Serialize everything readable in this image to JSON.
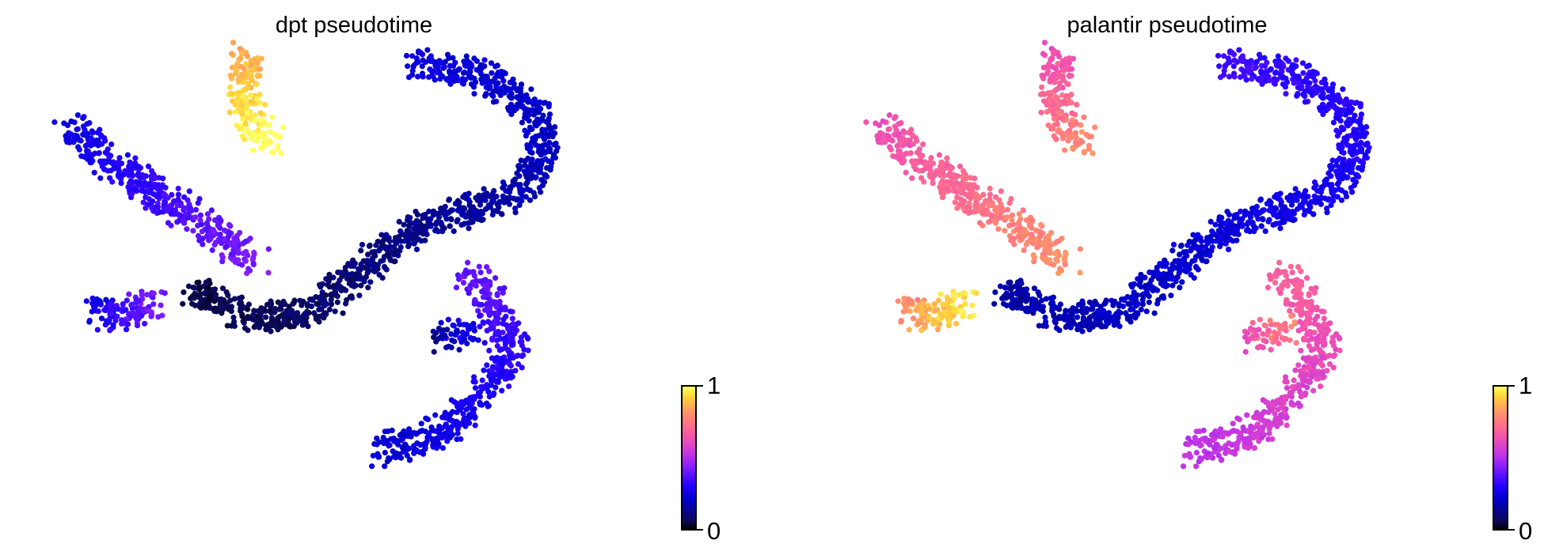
{
  "panels": [
    {
      "title": "dpt pseudotime",
      "colorbar": {
        "min_label": "0",
        "max_label": "1"
      }
    },
    {
      "title": "palantir pseudotime",
      "colorbar": {
        "min_label": "0",
        "max_label": "1"
      }
    }
  ],
  "chart_data": [
    {
      "type": "scatter",
      "title": "dpt pseudotime",
      "xlabel": "",
      "ylabel": "",
      "axes_visible": false,
      "grid": false,
      "colormap": "gnuplot2",
      "color_range": [
        0,
        1
      ],
      "colorbar_ticks": [
        "0",
        "1"
      ],
      "branches": [
        {
          "path": [
            [
              0.06,
              0.22
            ],
            [
              0.12,
              0.3
            ],
            [
              0.2,
              0.37
            ],
            [
              0.28,
              0.44
            ],
            [
              0.36,
              0.52
            ]
          ],
          "pseudotime": 0.33
        },
        {
          "path": [
            [
              0.1,
              0.62
            ],
            [
              0.14,
              0.64
            ],
            [
              0.2,
              0.6
            ]
          ],
          "pseudotime": 0.33
        },
        {
          "path": [
            [
              0.26,
              0.58
            ],
            [
              0.36,
              0.64
            ],
            [
              0.46,
              0.62
            ],
            [
              0.54,
              0.53
            ],
            [
              0.62,
              0.45
            ],
            [
              0.7,
              0.41
            ],
            [
              0.78,
              0.38
            ],
            [
              0.83,
              0.3
            ],
            [
              0.82,
              0.2
            ],
            [
              0.72,
              0.12
            ],
            [
              0.62,
              0.1
            ]
          ],
          "pseudotime": 0.15
        },
        {
          "path": [
            [
              0.35,
              0.08
            ],
            [
              0.34,
              0.16
            ],
            [
              0.36,
              0.23
            ],
            [
              0.39,
              0.27
            ]
          ],
          "pseudotime": 0.95
        },
        {
          "path": [
            [
              0.56,
              0.92
            ],
            [
              0.66,
              0.88
            ],
            [
              0.73,
              0.8
            ],
            [
              0.78,
              0.7
            ],
            [
              0.75,
              0.62
            ],
            [
              0.71,
              0.54
            ]
          ],
          "pseudotime": 0.3
        },
        {
          "path": [
            [
              0.66,
              0.68
            ],
            [
              0.71,
              0.66
            ]
          ],
          "pseudotime": 0.22
        }
      ]
    },
    {
      "type": "scatter",
      "title": "palantir pseudotime",
      "xlabel": "",
      "ylabel": "",
      "axes_visible": false,
      "grid": false,
      "colormap": "gnuplot2",
      "color_range": [
        0,
        1
      ],
      "colorbar_ticks": [
        "0",
        "1"
      ],
      "branches": [
        {
          "path": [
            [
              0.06,
              0.22
            ],
            [
              0.12,
              0.3
            ],
            [
              0.2,
              0.37
            ],
            [
              0.28,
              0.44
            ],
            [
              0.36,
              0.52
            ]
          ],
          "pseudotime": 0.72
        },
        {
          "path": [
            [
              0.1,
              0.62
            ],
            [
              0.14,
              0.64
            ],
            [
              0.2,
              0.6
            ]
          ],
          "pseudotime": 0.88
        },
        {
          "path": [
            [
              0.26,
              0.58
            ],
            [
              0.36,
              0.64
            ],
            [
              0.46,
              0.62
            ],
            [
              0.54,
              0.53
            ],
            [
              0.62,
              0.45
            ],
            [
              0.7,
              0.41
            ],
            [
              0.78,
              0.38
            ],
            [
              0.83,
              0.3
            ],
            [
              0.82,
              0.2
            ],
            [
              0.72,
              0.12
            ],
            [
              0.62,
              0.1
            ]
          ],
          "pseudotime": 0.25
        },
        {
          "path": [
            [
              0.35,
              0.08
            ],
            [
              0.34,
              0.16
            ],
            [
              0.36,
              0.23
            ],
            [
              0.39,
              0.27
            ]
          ],
          "pseudotime": 0.72
        },
        {
          "path": [
            [
              0.56,
              0.92
            ],
            [
              0.66,
              0.88
            ],
            [
              0.73,
              0.8
            ],
            [
              0.78,
              0.7
            ],
            [
              0.75,
              0.62
            ],
            [
              0.71,
              0.54
            ]
          ],
          "pseudotime": 0.6
        },
        {
          "path": [
            [
              0.66,
              0.68
            ],
            [
              0.71,
              0.66
            ]
          ],
          "pseudotime": 0.7
        }
      ]
    }
  ]
}
